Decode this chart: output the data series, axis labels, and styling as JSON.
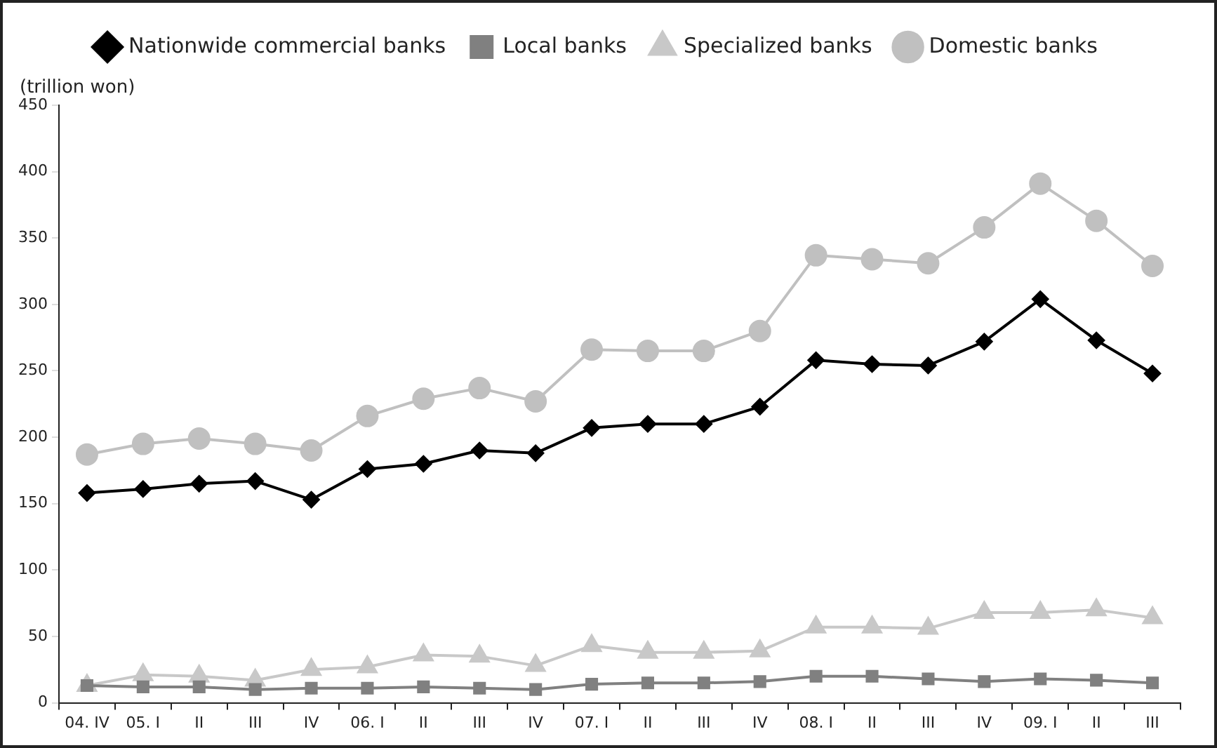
{
  "chart_data": {
    "type": "line",
    "ylabel": "(trillion won)",
    "categories": [
      "04. IV",
      "05. I",
      "II",
      "III",
      "IV",
      "06. I",
      "II",
      "III",
      "IV",
      "07. I",
      "II",
      "III",
      "IV",
      "08. I",
      "II",
      "III",
      "IV",
      "09. I",
      "II",
      "III"
    ],
    "ylim": [
      0,
      450
    ],
    "yticks": [
      0,
      50,
      100,
      150,
      200,
      250,
      300,
      350,
      400,
      450
    ],
    "grid": false,
    "legend": "top",
    "series": [
      {
        "name": "Nationwide commercial banks",
        "color": "#000000",
        "marker": "diamond",
        "values": [
          158,
          161,
          165,
          167,
          153,
          176,
          180,
          190,
          188,
          207,
          210,
          210,
          223,
          258,
          255,
          254,
          272,
          304,
          273,
          248
        ]
      },
      {
        "name": "Local banks",
        "color": "#808080",
        "marker": "square",
        "values": [
          13,
          12,
          12,
          10,
          11,
          11,
          12,
          11,
          10,
          14,
          15,
          15,
          16,
          20,
          20,
          18,
          16,
          18,
          17,
          15
        ]
      },
      {
        "name": "Specialized banks",
        "color": "#c8c8c8",
        "marker": "triangle",
        "values": [
          13,
          21,
          20,
          17,
          25,
          27,
          36,
          35,
          28,
          43,
          38,
          38,
          39,
          57,
          57,
          56,
          68,
          68,
          70,
          64
        ]
      },
      {
        "name": "Domestic banks",
        "color": "#c0c0c0",
        "marker": "circle",
        "values": [
          187,
          195,
          199,
          195,
          190,
          216,
          229,
          237,
          227,
          266,
          265,
          265,
          280,
          337,
          334,
          331,
          358,
          391,
          363,
          329
        ]
      }
    ]
  }
}
